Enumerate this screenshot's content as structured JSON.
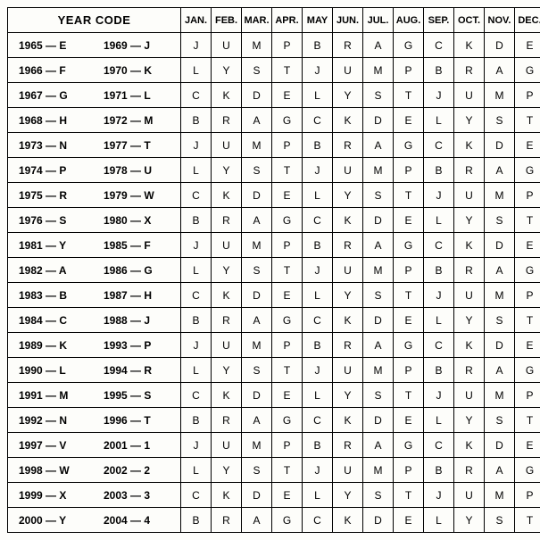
{
  "header": {
    "year_code": "YEAR CODE",
    "months": [
      "JAN.",
      "FEB.",
      "MAR.",
      "APR.",
      "MAY",
      "JUN.",
      "JUL.",
      "AUG.",
      "SEP.",
      "OCT.",
      "NOV.",
      "DEC."
    ]
  },
  "rows": [
    {
      "y1": "1965",
      "c1": "E",
      "y2": "1969",
      "c2": "J",
      "codes": [
        "J",
        "U",
        "M",
        "P",
        "B",
        "R",
        "A",
        "G",
        "C",
        "K",
        "D",
        "E"
      ]
    },
    {
      "y1": "1966",
      "c1": "F",
      "y2": "1970",
      "c2": "K",
      "codes": [
        "L",
        "Y",
        "S",
        "T",
        "J",
        "U",
        "M",
        "P",
        "B",
        "R",
        "A",
        "G"
      ]
    },
    {
      "y1": "1967",
      "c1": "G",
      "y2": "1971",
      "c2": "L",
      "codes": [
        "C",
        "K",
        "D",
        "E",
        "L",
        "Y",
        "S",
        "T",
        "J",
        "U",
        "M",
        "P"
      ]
    },
    {
      "y1": "1968",
      "c1": "H",
      "y2": "1972",
      "c2": "M",
      "codes": [
        "B",
        "R",
        "A",
        "G",
        "C",
        "K",
        "D",
        "E",
        "L",
        "Y",
        "S",
        "T"
      ]
    },
    {
      "y1": "1973",
      "c1": "N",
      "y2": "1977",
      "c2": "T",
      "codes": [
        "J",
        "U",
        "M",
        "P",
        "B",
        "R",
        "A",
        "G",
        "C",
        "K",
        "D",
        "E"
      ]
    },
    {
      "y1": "1974",
      "c1": "P",
      "y2": "1978",
      "c2": "U",
      "codes": [
        "L",
        "Y",
        "S",
        "T",
        "J",
        "U",
        "M",
        "P",
        "B",
        "R",
        "A",
        "G"
      ]
    },
    {
      "y1": "1975",
      "c1": "R",
      "y2": "1979",
      "c2": "W",
      "codes": [
        "C",
        "K",
        "D",
        "E",
        "L",
        "Y",
        "S",
        "T",
        "J",
        "U",
        "M",
        "P"
      ]
    },
    {
      "y1": "1976",
      "c1": "S",
      "y2": "1980",
      "c2": "X",
      "codes": [
        "B",
        "R",
        "A",
        "G",
        "C",
        "K",
        "D",
        "E",
        "L",
        "Y",
        "S",
        "T"
      ]
    },
    {
      "y1": "1981",
      "c1": "Y",
      "y2": "1985",
      "c2": "F",
      "codes": [
        "J",
        "U",
        "M",
        "P",
        "B",
        "R",
        "A",
        "G",
        "C",
        "K",
        "D",
        "E"
      ]
    },
    {
      "y1": "1982",
      "c1": "A",
      "y2": "1986",
      "c2": "G",
      "codes": [
        "L",
        "Y",
        "S",
        "T",
        "J",
        "U",
        "M",
        "P",
        "B",
        "R",
        "A",
        "G"
      ]
    },
    {
      "y1": "1983",
      "c1": "B",
      "y2": "1987",
      "c2": "H",
      "codes": [
        "C",
        "K",
        "D",
        "E",
        "L",
        "Y",
        "S",
        "T",
        "J",
        "U",
        "M",
        "P"
      ]
    },
    {
      "y1": "1984",
      "c1": "C",
      "y2": "1988",
      "c2": "J",
      "codes": [
        "B",
        "R",
        "A",
        "G",
        "C",
        "K",
        "D",
        "E",
        "L",
        "Y",
        "S",
        "T"
      ]
    },
    {
      "y1": "1989",
      "c1": "K",
      "y2": "1993",
      "c2": "P",
      "codes": [
        "J",
        "U",
        "M",
        "P",
        "B",
        "R",
        "A",
        "G",
        "C",
        "K",
        "D",
        "E"
      ]
    },
    {
      "y1": "1990",
      "c1": "L",
      "y2": "1994",
      "c2": "R",
      "codes": [
        "L",
        "Y",
        "S",
        "T",
        "J",
        "U",
        "M",
        "P",
        "B",
        "R",
        "A",
        "G"
      ]
    },
    {
      "y1": "1991",
      "c1": "M",
      "y2": "1995",
      "c2": "S",
      "codes": [
        "C",
        "K",
        "D",
        "E",
        "L",
        "Y",
        "S",
        "T",
        "J",
        "U",
        "M",
        "P"
      ]
    },
    {
      "y1": "1992",
      "c1": "N",
      "y2": "1996",
      "c2": "T",
      "codes": [
        "B",
        "R",
        "A",
        "G",
        "C",
        "K",
        "D",
        "E",
        "L",
        "Y",
        "S",
        "T"
      ]
    },
    {
      "y1": "1997",
      "c1": "V",
      "y2": "2001",
      "c2": "1",
      "codes": [
        "J",
        "U",
        "M",
        "P",
        "B",
        "R",
        "A",
        "G",
        "C",
        "K",
        "D",
        "E"
      ]
    },
    {
      "y1": "1998",
      "c1": "W",
      "y2": "2002",
      "c2": "2",
      "codes": [
        "L",
        "Y",
        "S",
        "T",
        "J",
        "U",
        "M",
        "P",
        "B",
        "R",
        "A",
        "G"
      ]
    },
    {
      "y1": "1999",
      "c1": "X",
      "y2": "2003",
      "c2": "3",
      "codes": [
        "C",
        "K",
        "D",
        "E",
        "L",
        "Y",
        "S",
        "T",
        "J",
        "U",
        "M",
        "P"
      ]
    },
    {
      "y1": "2000",
      "c1": "Y",
      "y2": "2004",
      "c2": "4",
      "codes": [
        "B",
        "R",
        "A",
        "G",
        "C",
        "K",
        "D",
        "E",
        "L",
        "Y",
        "S",
        "T"
      ]
    }
  ],
  "style": {
    "dash": " — "
  }
}
